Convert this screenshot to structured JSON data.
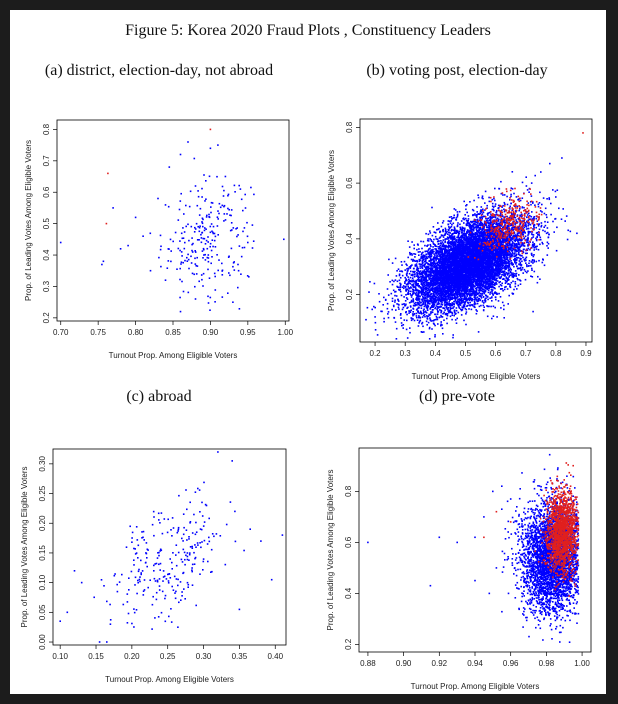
{
  "figure": {
    "title": "Figure 5: Korea 2020 Fraud Plots , Constituency Leaders"
  },
  "chart_data": [
    {
      "id": "a",
      "type": "scatter",
      "subtitle": "(a) district, election-day, not abroad",
      "xlabel": "Turnout Prop. Among Eligible Voters",
      "ylabel": "Prop. of Leading Votes Among Eligible Voters",
      "xlim": [
        0.695,
        1.005
      ],
      "ylim": [
        0.19,
        0.83
      ],
      "xticks": [
        "0.70",
        "0.75",
        "0.80",
        "0.85",
        "0.90",
        "0.95",
        "1.00"
      ],
      "yticks": [
        "0.2",
        "0.3",
        "0.4",
        "0.5",
        "0.6",
        "0.7",
        "0.8"
      ],
      "grid": false,
      "series": [
        {
          "color": "#0000ff",
          "cloud": {
            "n": 250,
            "cx": 0.895,
            "cy": 0.45,
            "sx": 0.03,
            "sy": 0.09,
            "rho": 0.15,
            "xmin": 0.8,
            "xmax": 0.96,
            "ymin": 0.22,
            "ymax": 0.78
          },
          "points": [
            [
              0.7,
              0.44
            ],
            [
              0.755,
              0.37
            ],
            [
              0.757,
              0.38
            ],
            [
              0.77,
              0.55
            ],
            [
              0.78,
              0.42
            ],
            [
              0.79,
              0.43
            ],
            [
              0.8,
              0.52
            ],
            [
              0.81,
              0.46
            ],
            [
              0.82,
              0.35
            ],
            [
              0.83,
              0.58
            ],
            [
              0.84,
              0.32
            ],
            [
              0.845,
              0.68
            ],
            [
              0.86,
              0.72
            ],
            [
              0.87,
              0.76
            ],
            [
              0.88,
              0.62
            ],
            [
              0.9,
              0.74
            ],
            [
              0.91,
              0.75
            ],
            [
              0.92,
              0.65
            ],
            [
              0.94,
              0.61
            ],
            [
              0.93,
              0.25
            ],
            [
              0.95,
              0.44
            ],
            [
              0.998,
              0.45
            ],
            [
              0.86,
              0.22
            ],
            [
              0.88,
              0.26
            ]
          ]
        },
        {
          "color": "#e0201f",
          "points": [
            [
              0.763,
              0.66
            ],
            [
              0.761,
              0.5
            ],
            [
              0.9,
              0.8
            ]
          ]
        }
      ]
    },
    {
      "id": "b",
      "type": "scatter",
      "subtitle": "(b) voting post, election-day",
      "xlabel": "Turnout Prop. Among Eligible Voters",
      "ylabel": "Prop. of Leading Votes Among Eligible Voters",
      "xlim": [
        0.15,
        0.92
      ],
      "ylim": [
        0.03,
        0.83
      ],
      "xticks": [
        "0.2",
        "0.3",
        "0.4",
        "0.5",
        "0.6",
        "0.7",
        "0.8",
        "0.9"
      ],
      "yticks": [
        "0.2",
        "0.4",
        "0.6",
        "0.8"
      ],
      "grid": false,
      "series": [
        {
          "color": "#0000ff",
          "cloud": {
            "n": 9000,
            "cx": 0.51,
            "cy": 0.31,
            "sx": 0.095,
            "sy": 0.085,
            "rho": 0.55,
            "xmin": 0.16,
            "xmax": 0.85,
            "ymin": 0.04,
            "ymax": 0.7
          },
          "points": [
            [
              0.17,
              0.11
            ],
            [
              0.2,
              0.12
            ],
            [
              0.22,
              0.14
            ],
            [
              0.78,
              0.67
            ],
            [
              0.8,
              0.55
            ],
            [
              0.82,
              0.69
            ],
            [
              0.87,
              0.42
            ],
            [
              0.75,
              0.64
            ],
            [
              0.72,
              0.6
            ]
          ]
        },
        {
          "color": "#e0201f",
          "cloud": {
            "n": 350,
            "cx": 0.64,
            "cy": 0.45,
            "sx": 0.05,
            "sy": 0.05,
            "rho": 0.3,
            "xmin": 0.5,
            "xmax": 0.76,
            "ymin": 0.3,
            "ymax": 0.6
          },
          "points": [
            [
              0.89,
              0.78
            ]
          ]
        }
      ]
    },
    {
      "id": "c",
      "type": "scatter",
      "subtitle": "(c) abroad",
      "xlabel": "Turnout Prop. Among Eligible Voters",
      "ylabel": "Prop. of Leading Votes Among Eligible Voters",
      "xlim": [
        0.09,
        0.415
      ],
      "ylim": [
        -0.005,
        0.325
      ],
      "xticks": [
        "0.10",
        "0.15",
        "0.20",
        "0.25",
        "0.30",
        "0.35",
        "0.40"
      ],
      "yticks": [
        "0.00",
        "0.05",
        "0.10",
        "0.15",
        "0.20",
        "0.25",
        "0.30"
      ],
      "grid": false,
      "series": [
        {
          "color": "#0000ff",
          "cloud": {
            "n": 260,
            "cx": 0.255,
            "cy": 0.14,
            "sx": 0.04,
            "sy": 0.055,
            "rho": 0.45,
            "xmin": 0.14,
            "xmax": 0.37,
            "ymin": 0.01,
            "ymax": 0.27
          },
          "points": [
            [
              0.1,
              0.035
            ],
            [
              0.11,
              0.05
            ],
            [
              0.12,
              0.12
            ],
            [
              0.13,
              0.1
            ],
            [
              0.155,
              0.0
            ],
            [
              0.165,
              0.0
            ],
            [
              0.17,
              0.03
            ],
            [
              0.32,
              0.32
            ],
            [
              0.34,
              0.305
            ],
            [
              0.365,
              0.19
            ],
            [
              0.38,
              0.17
            ],
            [
              0.395,
              0.105
            ],
            [
              0.41,
              0.18
            ],
            [
              0.35,
              0.055
            ]
          ]
        }
      ]
    },
    {
      "id": "d",
      "type": "scatter",
      "subtitle": "(d) pre-vote",
      "xlabel": "Turnout Prop. Among Eligible Voters",
      "ylabel": "Prop. of Leading Votes Among Eligible Voters",
      "xlim": [
        0.875,
        1.005
      ],
      "ylim": [
        0.17,
        0.97
      ],
      "xticks": [
        "0.88",
        "0.90",
        "0.92",
        "0.94",
        "0.96",
        "0.98",
        "1.00"
      ],
      "yticks": [
        "0.2",
        "0.4",
        "0.6",
        "0.8"
      ],
      "grid": false,
      "series": [
        {
          "color": "#0000ff",
          "cloud": {
            "n": 3500,
            "cx": 0.984,
            "cy": 0.54,
            "sx": 0.009,
            "sy": 0.11,
            "rho": 0.05,
            "xmin": 0.95,
            "xmax": 0.998,
            "ymin": 0.2,
            "ymax": 0.95
          },
          "points": [
            [
              0.88,
              0.6
            ],
            [
              0.915,
              0.43
            ],
            [
              0.92,
              0.62
            ],
            [
              0.93,
              0.6
            ],
            [
              0.94,
              0.45
            ],
            [
              0.945,
              0.7
            ],
            [
              0.95,
              0.8
            ],
            [
              0.952,
              0.5
            ],
            [
              0.955,
              0.73
            ],
            [
              0.94,
              0.62
            ],
            [
              0.948,
              0.4
            ],
            [
              0.955,
              0.82
            ],
            [
              0.96,
              0.77
            ]
          ]
        },
        {
          "color": "#e0201f",
          "cloud": {
            "n": 1500,
            "cx": 0.989,
            "cy": 0.64,
            "sx": 0.0045,
            "sy": 0.08,
            "rho": 0.05,
            "xmin": 0.97,
            "xmax": 0.998,
            "ymin": 0.38,
            "ymax": 0.94
          },
          "points": [
            [
              0.945,
              0.62
            ],
            [
              0.952,
              0.72
            ],
            [
              0.96,
              0.68
            ]
          ]
        }
      ]
    }
  ]
}
